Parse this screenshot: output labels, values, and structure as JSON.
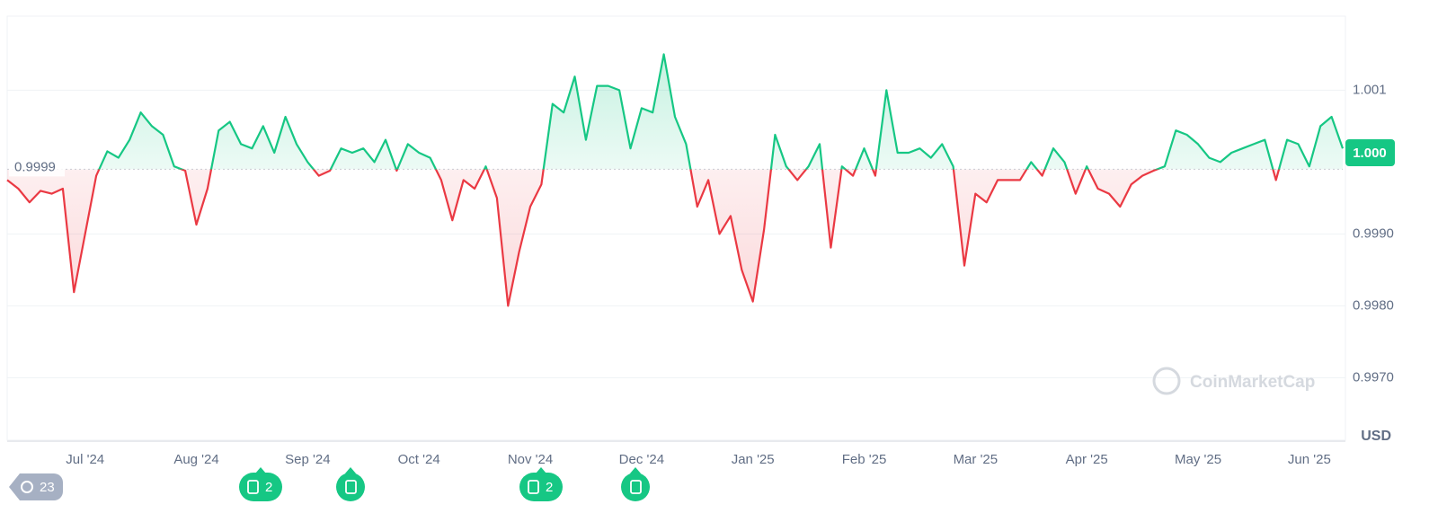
{
  "chart_data": {
    "type": "line",
    "categories": [
      null,
      null,
      null,
      null,
      null,
      null,
      null,
      "Jul '24",
      null,
      null,
      null,
      null,
      null,
      null,
      null,
      null,
      null,
      "Aug '24",
      null,
      null,
      null,
      null,
      null,
      null,
      null,
      null,
      null,
      "Sep '24",
      null,
      null,
      null,
      null,
      null,
      null,
      null,
      null,
      null,
      "Oct '24",
      null,
      null,
      null,
      null,
      null,
      null,
      null,
      null,
      null,
      "Nov '24",
      null,
      null,
      null,
      null,
      null,
      null,
      null,
      null,
      null,
      "Dec '24",
      null,
      null,
      null,
      null,
      null,
      null,
      null,
      null,
      null,
      "Jan '25",
      null,
      null,
      null,
      null,
      null,
      null,
      null,
      null,
      null,
      "Feb '25",
      null,
      null,
      null,
      null,
      null,
      null,
      null,
      null,
      null,
      "Mar '25",
      null,
      null,
      null,
      null,
      null,
      null,
      null,
      null,
      null,
      "Apr '25",
      null,
      null,
      null,
      null,
      null,
      null,
      null,
      null,
      null,
      "May '25",
      null,
      null,
      null,
      null,
      null,
      null,
      null,
      null,
      null,
      "Jun '25",
      null,
      null,
      null
    ],
    "values": [
      0.99975,
      0.99963,
      0.99944,
      0.9996,
      0.99956,
      0.99963,
      0.99819,
      0.999,
      0.99981,
      1.00015,
      1.00006,
      1.00031,
      1.00069,
      1.0005,
      1.00038,
      0.99994,
      0.99988,
      0.99913,
      0.99963,
      1.00044,
      1.00056,
      1.00025,
      1.00019,
      1.0005,
      1.00013,
      1.00063,
      1.00025,
      1.0,
      0.99981,
      0.99988,
      1.00019,
      1.00013,
      1.00019,
      1.0,
      1.00031,
      0.99988,
      1.00025,
      1.00013,
      1.00006,
      0.99975,
      0.99919,
      0.99975,
      0.99963,
      0.99994,
      0.9995,
      0.998,
      0.99875,
      0.99938,
      0.99969,
      1.00081,
      1.00069,
      1.00119,
      1.00031,
      1.00106,
      1.00106,
      1.001,
      1.00019,
      1.00075,
      1.00069,
      1.0015,
      1.00063,
      1.00025,
      0.99938,
      0.99975,
      0.999,
      0.99925,
      0.9985,
      0.99806,
      0.99906,
      1.00038,
      0.99994,
      0.99975,
      0.99994,
      1.00025,
      0.99881,
      0.99994,
      0.99981,
      1.00019,
      0.99981,
      1.001,
      1.00013,
      1.00013,
      1.00019,
      1.00006,
      1.00025,
      0.99994,
      0.99856,
      0.99956,
      0.99944,
      0.99975,
      0.99975,
      0.99975,
      1.0,
      0.99981,
      1.00019,
      1.0,
      0.99956,
      0.99994,
      0.99963,
      0.99956,
      0.99938,
      0.99969,
      0.99981,
      0.99988,
      0.99994,
      1.00044,
      1.00038,
      1.00025,
      1.00006,
      1.0,
      1.00013,
      1.00019,
      1.00025,
      1.00031,
      0.99975,
      1.00031,
      1.00025,
      0.99994,
      1.0005,
      1.00063,
      1.00019
    ],
    "up_color": "#16c784",
    "down_color": "#ea3943",
    "ylim": [
      0.99613,
      1.00203
    ],
    "yticks": [
      1.001,
      {
        "value": 0.999,
        "label": "0.9990"
      },
      {
        "value": 0.998,
        "label": "0.9980"
      },
      {
        "value": 0.997,
        "label": "0.9970"
      }
    ],
    "grid": true,
    "baseline": {
      "value": 0.9999,
      "label": "0.9999"
    },
    "current_price": {
      "value": 1.00013,
      "label": "1.000"
    },
    "currency": "USD",
    "watermark": "CoinMarketCap",
    "history_count": 23,
    "events": [
      "2",
      null,
      "2",
      null
    ]
  }
}
